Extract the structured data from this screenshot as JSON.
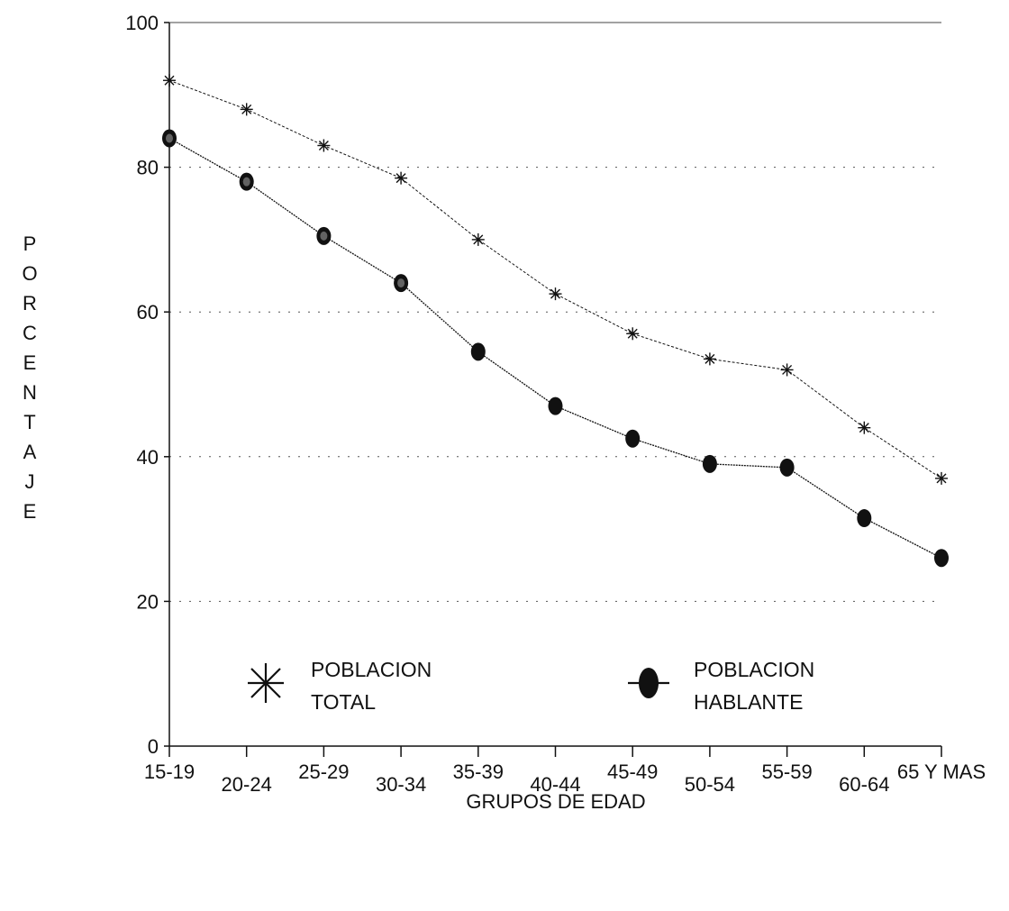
{
  "chart_data": {
    "type": "line",
    "title": "",
    "xlabel": "GRUPOS DE EDAD",
    "ylabel": "PORCENTAJE",
    "categories": [
      "15-19",
      "20-24",
      "25-29",
      "30-34",
      "35-39",
      "40-44",
      "45-49",
      "50-54",
      "55-59",
      "60-64",
      "65 Y MAS"
    ],
    "ylim": [
      0,
      100
    ],
    "yticks": [
      "0",
      "20",
      "40",
      "60",
      "80",
      "100"
    ],
    "grid": "horizontal-dotted",
    "legend_position": "bottom",
    "series": [
      {
        "name": "POBLACION TOTAL",
        "marker": "asterisk",
        "color": "#111111",
        "values": [
          92,
          88,
          83,
          78.5,
          70,
          62.5,
          57,
          53.5,
          52,
          44,
          37
        ]
      },
      {
        "name": "POBLACION HABLANTE",
        "marker": "filled-ellipse",
        "color": "#111111",
        "values": [
          84,
          78,
          70.5,
          64,
          54.5,
          47,
          42.5,
          39,
          38.5,
          31.5,
          26
        ]
      }
    ]
  }
}
